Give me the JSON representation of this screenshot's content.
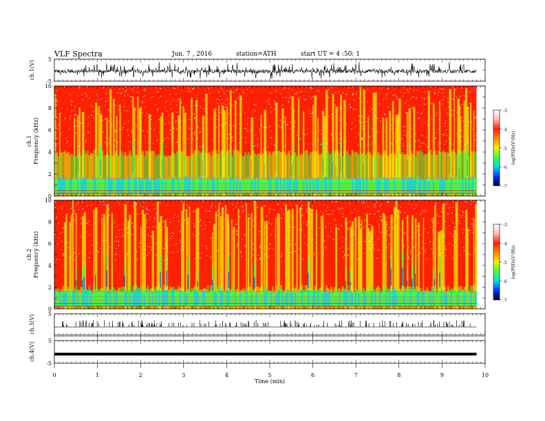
{
  "header": {
    "title": "VLF Spectra",
    "date": "Jun. 7 , 2016",
    "station": "station=ATH",
    "start": "start UT = 4 :50: 1"
  },
  "chart_data": [
    {
      "type": "line",
      "panel": "ch1-waveform",
      "ylabel": "ch.1(V)",
      "ylim": [
        -5,
        5
      ],
      "yticks": [
        "5",
        "-5"
      ],
      "description_values": {
        "baseline": -0.5,
        "peak_range": [
          -5,
          5
        ]
      }
    },
    {
      "type": "heatmap",
      "panel": "ch1-spectrogram",
      "ylabel": "ch.1",
      "ylabel2": "Frequency (kHz)",
      "ylim": [
        0,
        10
      ],
      "yticks": [
        "0",
        "2",
        "4",
        "6",
        "8",
        "10"
      ],
      "colorbar": {
        "label": "log(PSD)(V²/Hz)",
        "range": [
          -7,
          -3
        ],
        "ticks": [
          "-3",
          "-4",
          "-5",
          "-6",
          "-7"
        ]
      }
    },
    {
      "type": "heatmap",
      "panel": "ch2-spectrogram",
      "ylabel": "ch.2",
      "ylabel2": "Frequency (kHz)",
      "ylim": [
        0,
        10
      ],
      "yticks": [
        "0",
        "2",
        "4",
        "6",
        "8",
        "10"
      ],
      "colorbar": {
        "label": "log(PSD)(V²/Hz)",
        "range": [
          -7,
          -3
        ],
        "ticks": [
          "-3",
          "-4",
          "-5",
          "-6",
          "-7"
        ]
      }
    },
    {
      "type": "line",
      "panel": "ch3-waveform",
      "ylabel": "ch.3(V)",
      "ylim": [
        -5,
        5
      ],
      "yticks": [
        "5"
      ]
    },
    {
      "type": "line",
      "panel": "ch4-waveform",
      "ylabel": "ch.4(V)",
      "ylim": [
        -5,
        5
      ],
      "yticks": [
        "5",
        "-5"
      ],
      "values": {
        "constant": -1.0
      }
    }
  ],
  "xaxis": {
    "label": "Time (min)",
    "range": [
      0,
      10
    ],
    "ticks": [
      "0",
      "1",
      "2",
      "3",
      "4",
      "5",
      "6",
      "7",
      "8",
      "9",
      "10"
    ],
    "data_end": 9.8
  },
  "colors": {
    "red": "#ff2000",
    "yellow": "#f0f000",
    "green": "#40ff40",
    "cyan": "#00e0e0",
    "blue": "#0030ff",
    "pink": "#ffc0c0"
  }
}
